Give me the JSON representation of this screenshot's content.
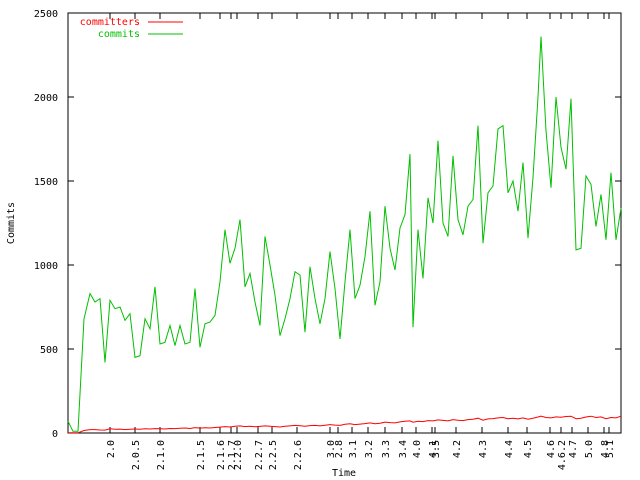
{
  "chart_data": {
    "type": "line",
    "y_label": "Commits",
    "x_label": "Time",
    "xlim": [
      0,
      553
    ],
    "ylim": [
      0,
      2500
    ],
    "yticks": [
      0,
      500,
      1000,
      1500,
      2000,
      2500
    ],
    "xticks": [
      {
        "value": 42,
        "label": "2.0"
      },
      {
        "value": 67,
        "label": "2.0.5"
      },
      {
        "value": 92,
        "label": "2.1.0"
      },
      {
        "value": 132,
        "label": "2.1.5"
      },
      {
        "value": 152,
        "label": "2.1.6"
      },
      {
        "value": 163,
        "label": "2.1.7"
      },
      {
        "value": 169,
        "label": "2.2.0"
      },
      {
        "value": 190,
        "label": "2.2.7"
      },
      {
        "value": 204,
        "label": "2.2.5"
      },
      {
        "value": 229,
        "label": "2.2.6"
      },
      {
        "value": 262,
        "label": "3.0"
      },
      {
        "value": 270,
        "label": "2.8"
      },
      {
        "value": 284,
        "label": "3.1"
      },
      {
        "value": 300,
        "label": "3.2"
      },
      {
        "value": 317,
        "label": "3.3"
      },
      {
        "value": 334,
        "label": "3.4"
      },
      {
        "value": 348,
        "label": "4.0"
      },
      {
        "value": 364,
        "label": "4.1"
      },
      {
        "value": 367,
        "label": "3.5"
      },
      {
        "value": 388,
        "label": "4.2"
      },
      {
        "value": 414,
        "label": "4.3"
      },
      {
        "value": 440,
        "label": "4.4"
      },
      {
        "value": 459,
        "label": "4.5"
      },
      {
        "value": 482,
        "label": "4.6"
      },
      {
        "value": 493,
        "label": "4.6.2"
      },
      {
        "value": 504,
        "label": "4.7"
      },
      {
        "value": 520,
        "label": "5.0"
      },
      {
        "value": 536,
        "label": "4.8"
      },
      {
        "value": 541,
        "label": "5.1"
      }
    ],
    "x": [
      0,
      5,
      10,
      16,
      22,
      27,
      32,
      37,
      42,
      47,
      52,
      57,
      62,
      67,
      72,
      77,
      82,
      87,
      92,
      97,
      102,
      107,
      112,
      117,
      122,
      127,
      132,
      137,
      142,
      147,
      152,
      157,
      162,
      167,
      172,
      177,
      182,
      187,
      192,
      197,
      202,
      207,
      212,
      217,
      222,
      227,
      232,
      237,
      242,
      247,
      252,
      257,
      262,
      267,
      272,
      277,
      282,
      287,
      292,
      297,
      302,
      307,
      312,
      317,
      322,
      327,
      332,
      337,
      342,
      345,
      350,
      355,
      360,
      365,
      370,
      375,
      380,
      385,
      390,
      395,
      400,
      405,
      410,
      415,
      420,
      425,
      430,
      435,
      440,
      445,
      450,
      455,
      460,
      465,
      470,
      473,
      478,
      483,
      488,
      493,
      498,
      503,
      508,
      513,
      518,
      523,
      528,
      533,
      538,
      543,
      548,
      553
    ],
    "legend": "top-left",
    "series": [
      {
        "name": "committers",
        "color": "#ff0000",
        "values": [
          2,
          1,
          1,
          15,
          20,
          20,
          18,
          17,
          25,
          22,
          23,
          20,
          22,
          24,
          22,
          25,
          24,
          26,
          25,
          24,
          27,
          26,
          28,
          30,
          27,
          32,
          29,
          31,
          30,
          33,
          35,
          38,
          36,
          40,
          42,
          38,
          40,
          37,
          39,
          42,
          40,
          38,
          36,
          40,
          42,
          45,
          43,
          40,
          44,
          45,
          42,
          46,
          50,
          47,
          45,
          52,
          55,
          50,
          53,
          56,
          60,
          55,
          58,
          65,
          62,
          60,
          66,
          70,
          72,
          64,
          70,
          68,
          74,
          72,
          78,
          75,
          72,
          80,
          76,
          74,
          80,
          82,
          88,
          76,
          84,
          86,
          90,
          92,
          85,
          88,
          84,
          90,
          82,
          88,
          95,
          100,
          92,
          90,
          96,
          94,
          98,
          100,
          85,
          88,
          95,
          100,
          92,
          96,
          85,
          92,
          90,
          100
        ]
      },
      {
        "name": "commits",
        "color": "#00c000",
        "values": [
          70,
          10,
          10,
          680,
          830,
          780,
          800,
          420,
          790,
          740,
          750,
          670,
          710,
          450,
          460,
          680,
          620,
          870,
          530,
          540,
          640,
          520,
          640,
          530,
          540,
          860,
          510,
          650,
          660,
          700,
          900,
          1210,
          1010,
          1100,
          1270,
          870,
          950,
          780,
          640,
          1170,
          1000,
          820,
          580,
          680,
          800,
          960,
          940,
          600,
          990,
          800,
          650,
          800,
          1080,
          860,
          560,
          900,
          1210,
          800,
          880,
          1050,
          1320,
          760,
          900,
          1350,
          1100,
          970,
          1220,
          1300,
          1660,
          630,
          1210,
          920,
          1400,
          1250,
          1740,
          1250,
          1170,
          1650,
          1270,
          1180,
          1350,
          1390,
          1830,
          1130,
          1430,
          1470,
          1810,
          1830,
          1430,
          1500,
          1320,
          1610,
          1160,
          1520,
          2000,
          2360,
          1800,
          1460,
          2000,
          1700,
          1570,
          1990,
          1090,
          1100,
          1530,
          1480,
          1230,
          1420,
          1150,
          1550,
          1150,
          1340
        ]
      }
    ]
  }
}
